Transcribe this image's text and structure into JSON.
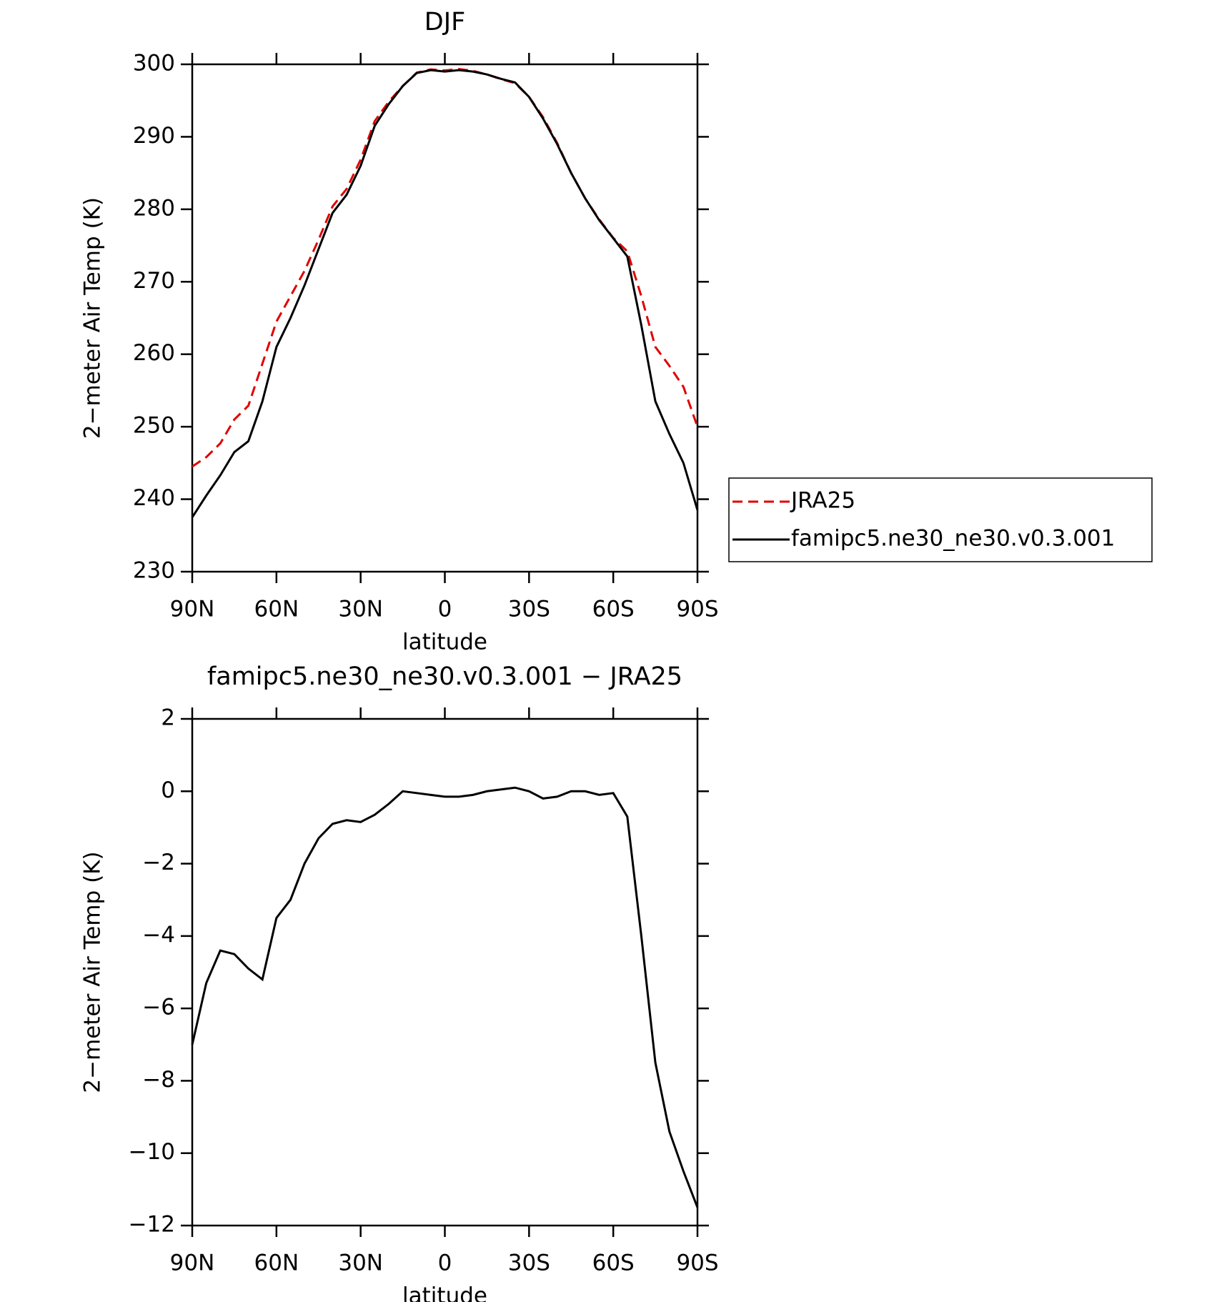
{
  "chart_data": [
    {
      "type": "line",
      "title": "DJF",
      "xlabel": "latitude",
      "ylabel": "2−meter Air Temp (K)",
      "x": [
        90,
        85,
        80,
        75,
        70,
        65,
        60,
        55,
        50,
        45,
        40,
        35,
        30,
        25,
        20,
        15,
        10,
        5,
        0,
        -5,
        -10,
        -15,
        -20,
        -25,
        -30,
        -35,
        -40,
        -45,
        -50,
        -55,
        -60,
        -65,
        -70,
        -75,
        -80,
        -85,
        -90
      ],
      "series": [
        {
          "name": "JRA25",
          "color": "#e00000",
          "dashed": true,
          "values": [
            244.5,
            245.8,
            247.7,
            251,
            252.9,
            258.7,
            264.5,
            268,
            271.5,
            275.8,
            280.4,
            282.8,
            286.85,
            292.15,
            294.85,
            297,
            298.85,
            299.3,
            299.15,
            299.35,
            299.1,
            298.6,
            297.95,
            297.4,
            295.5,
            292.7,
            289.15,
            285,
            281.5,
            278.6,
            276.05,
            274.2,
            268,
            261,
            258.4,
            255.5,
            250
          ]
        },
        {
          "name": "famipc5.ne30_ne30.v0.3.001",
          "color": "#000000",
          "dashed": false,
          "values": [
            237.5,
            240.5,
            243.3,
            246.5,
            248,
            253.5,
            261,
            265,
            269.5,
            274.5,
            279.5,
            282,
            286,
            291.5,
            294.5,
            297,
            298.8,
            299.2,
            299,
            299.2,
            299,
            298.6,
            298,
            297.5,
            295.5,
            292.5,
            289,
            285,
            281.5,
            278.5,
            276,
            273.5,
            264,
            253.5,
            249,
            245,
            238.5
          ]
        }
      ],
      "xlim": [
        90,
        -90
      ],
      "xticks": [
        {
          "value": 90,
          "label": "90N"
        },
        {
          "value": 60,
          "label": "60N"
        },
        {
          "value": 30,
          "label": "30N"
        },
        0,
        {
          "value": -30,
          "label": "30S"
        },
        {
          "value": -60,
          "label": "60S"
        },
        {
          "value": -90,
          "label": "90S"
        }
      ],
      "ylim": [
        230,
        300
      ],
      "yticks": [
        230,
        240,
        250,
        260,
        270,
        280,
        290,
        300
      ],
      "legend": "right"
    },
    {
      "type": "line",
      "title": "famipc5.ne30_ne30.v0.3.001 − JRA25",
      "xlabel": "latitude",
      "ylabel": "2−meter Air Temp (K)",
      "x": [
        90,
        85,
        80,
        75,
        70,
        65,
        60,
        55,
        50,
        45,
        40,
        35,
        30,
        25,
        20,
        15,
        10,
        5,
        0,
        -5,
        -10,
        -15,
        -20,
        -25,
        -30,
        -35,
        -40,
        -45,
        -50,
        -55,
        -60,
        -65,
        -70,
        -75,
        -80,
        -85,
        -90
      ],
      "series": [
        {
          "color": "#000000",
          "dashed": false,
          "values": [
            -7,
            -5.3,
            -4.4,
            -4.5,
            -4.9,
            -5.2,
            -3.5,
            -3,
            -2,
            -1.3,
            -0.9,
            -0.8,
            -0.85,
            -0.65,
            -0.35,
            0,
            -0.05,
            -0.1,
            -0.15,
            -0.15,
            -0.1,
            0,
            0.05,
            0.1,
            0,
            -0.2,
            -0.15,
            0,
            0,
            -0.1,
            -0.05,
            -0.7,
            -4,
            -7.5,
            -9.4,
            -10.5,
            -11.5
          ]
        }
      ],
      "xlim": [
        90,
        -90
      ],
      "xticks": [
        {
          "value": 90,
          "label": "90N"
        },
        {
          "value": 60,
          "label": "60N"
        },
        {
          "value": 30,
          "label": "30N"
        },
        0,
        {
          "value": -30,
          "label": "30S"
        },
        {
          "value": -60,
          "label": "60S"
        },
        {
          "value": -90,
          "label": "90S"
        }
      ],
      "ylim": [
        -12,
        2
      ],
      "yticks": [
        {
          "value": -12,
          "label": "−12"
        },
        {
          "value": -10,
          "label": "−10"
        },
        {
          "value": -8,
          "label": "−8"
        },
        {
          "value": -6,
          "label": "−6"
        },
        {
          "value": -4,
          "label": "−4"
        },
        {
          "value": -2,
          "label": "−2"
        },
        0,
        2
      ]
    }
  ]
}
